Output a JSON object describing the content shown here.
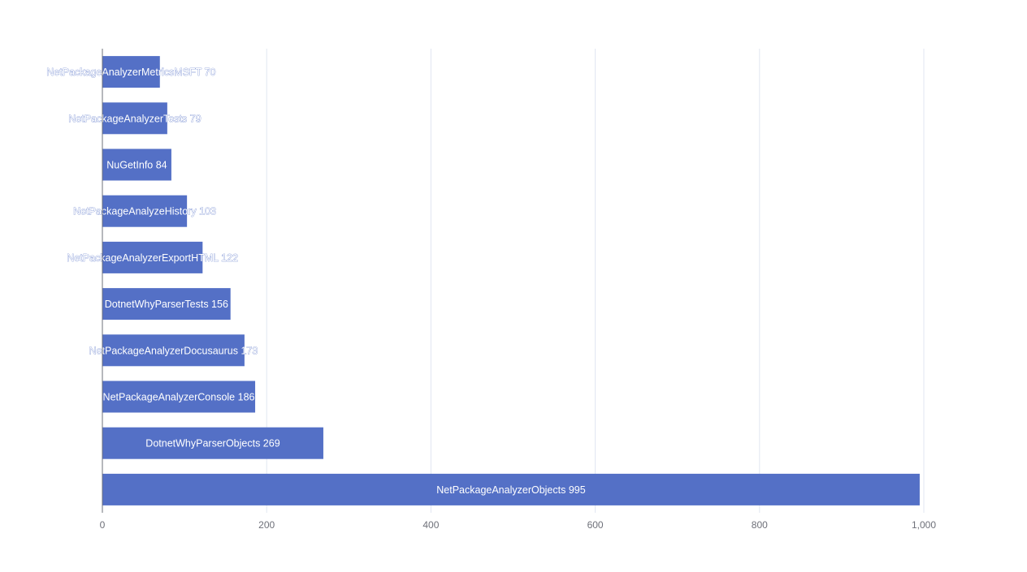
{
  "chart_data": {
    "type": "bar",
    "orientation": "horizontal",
    "categories": [
      "NetPackageAnalyzerObjects",
      "DotnetWhyParserObjects",
      "NetPackageAnalyzerConsole",
      "NetPackageAnalyzerDocusaurus",
      "DotnetWhyParserTests",
      "NetPackageAnalyzerExportHTML",
      "NetPackageAnalyzeHistory",
      "NuGetInfo",
      "NetPackageAnalyzerTests",
      "NetPackageAnalyzerMetricsMSFT"
    ],
    "values": [
      995,
      269,
      186,
      173,
      156,
      122,
      103,
      84,
      79,
      70
    ],
    "xlim": [
      0,
      1000
    ],
    "xticks": [
      "0",
      "200",
      "400",
      "600",
      "800",
      "1,000"
    ],
    "grid": true,
    "bar_color": "#5470c6",
    "gridline_color": "#e0e6f1",
    "label_position": "inside bar, centered",
    "title": "",
    "xlabel": "",
    "ylabel": ""
  }
}
